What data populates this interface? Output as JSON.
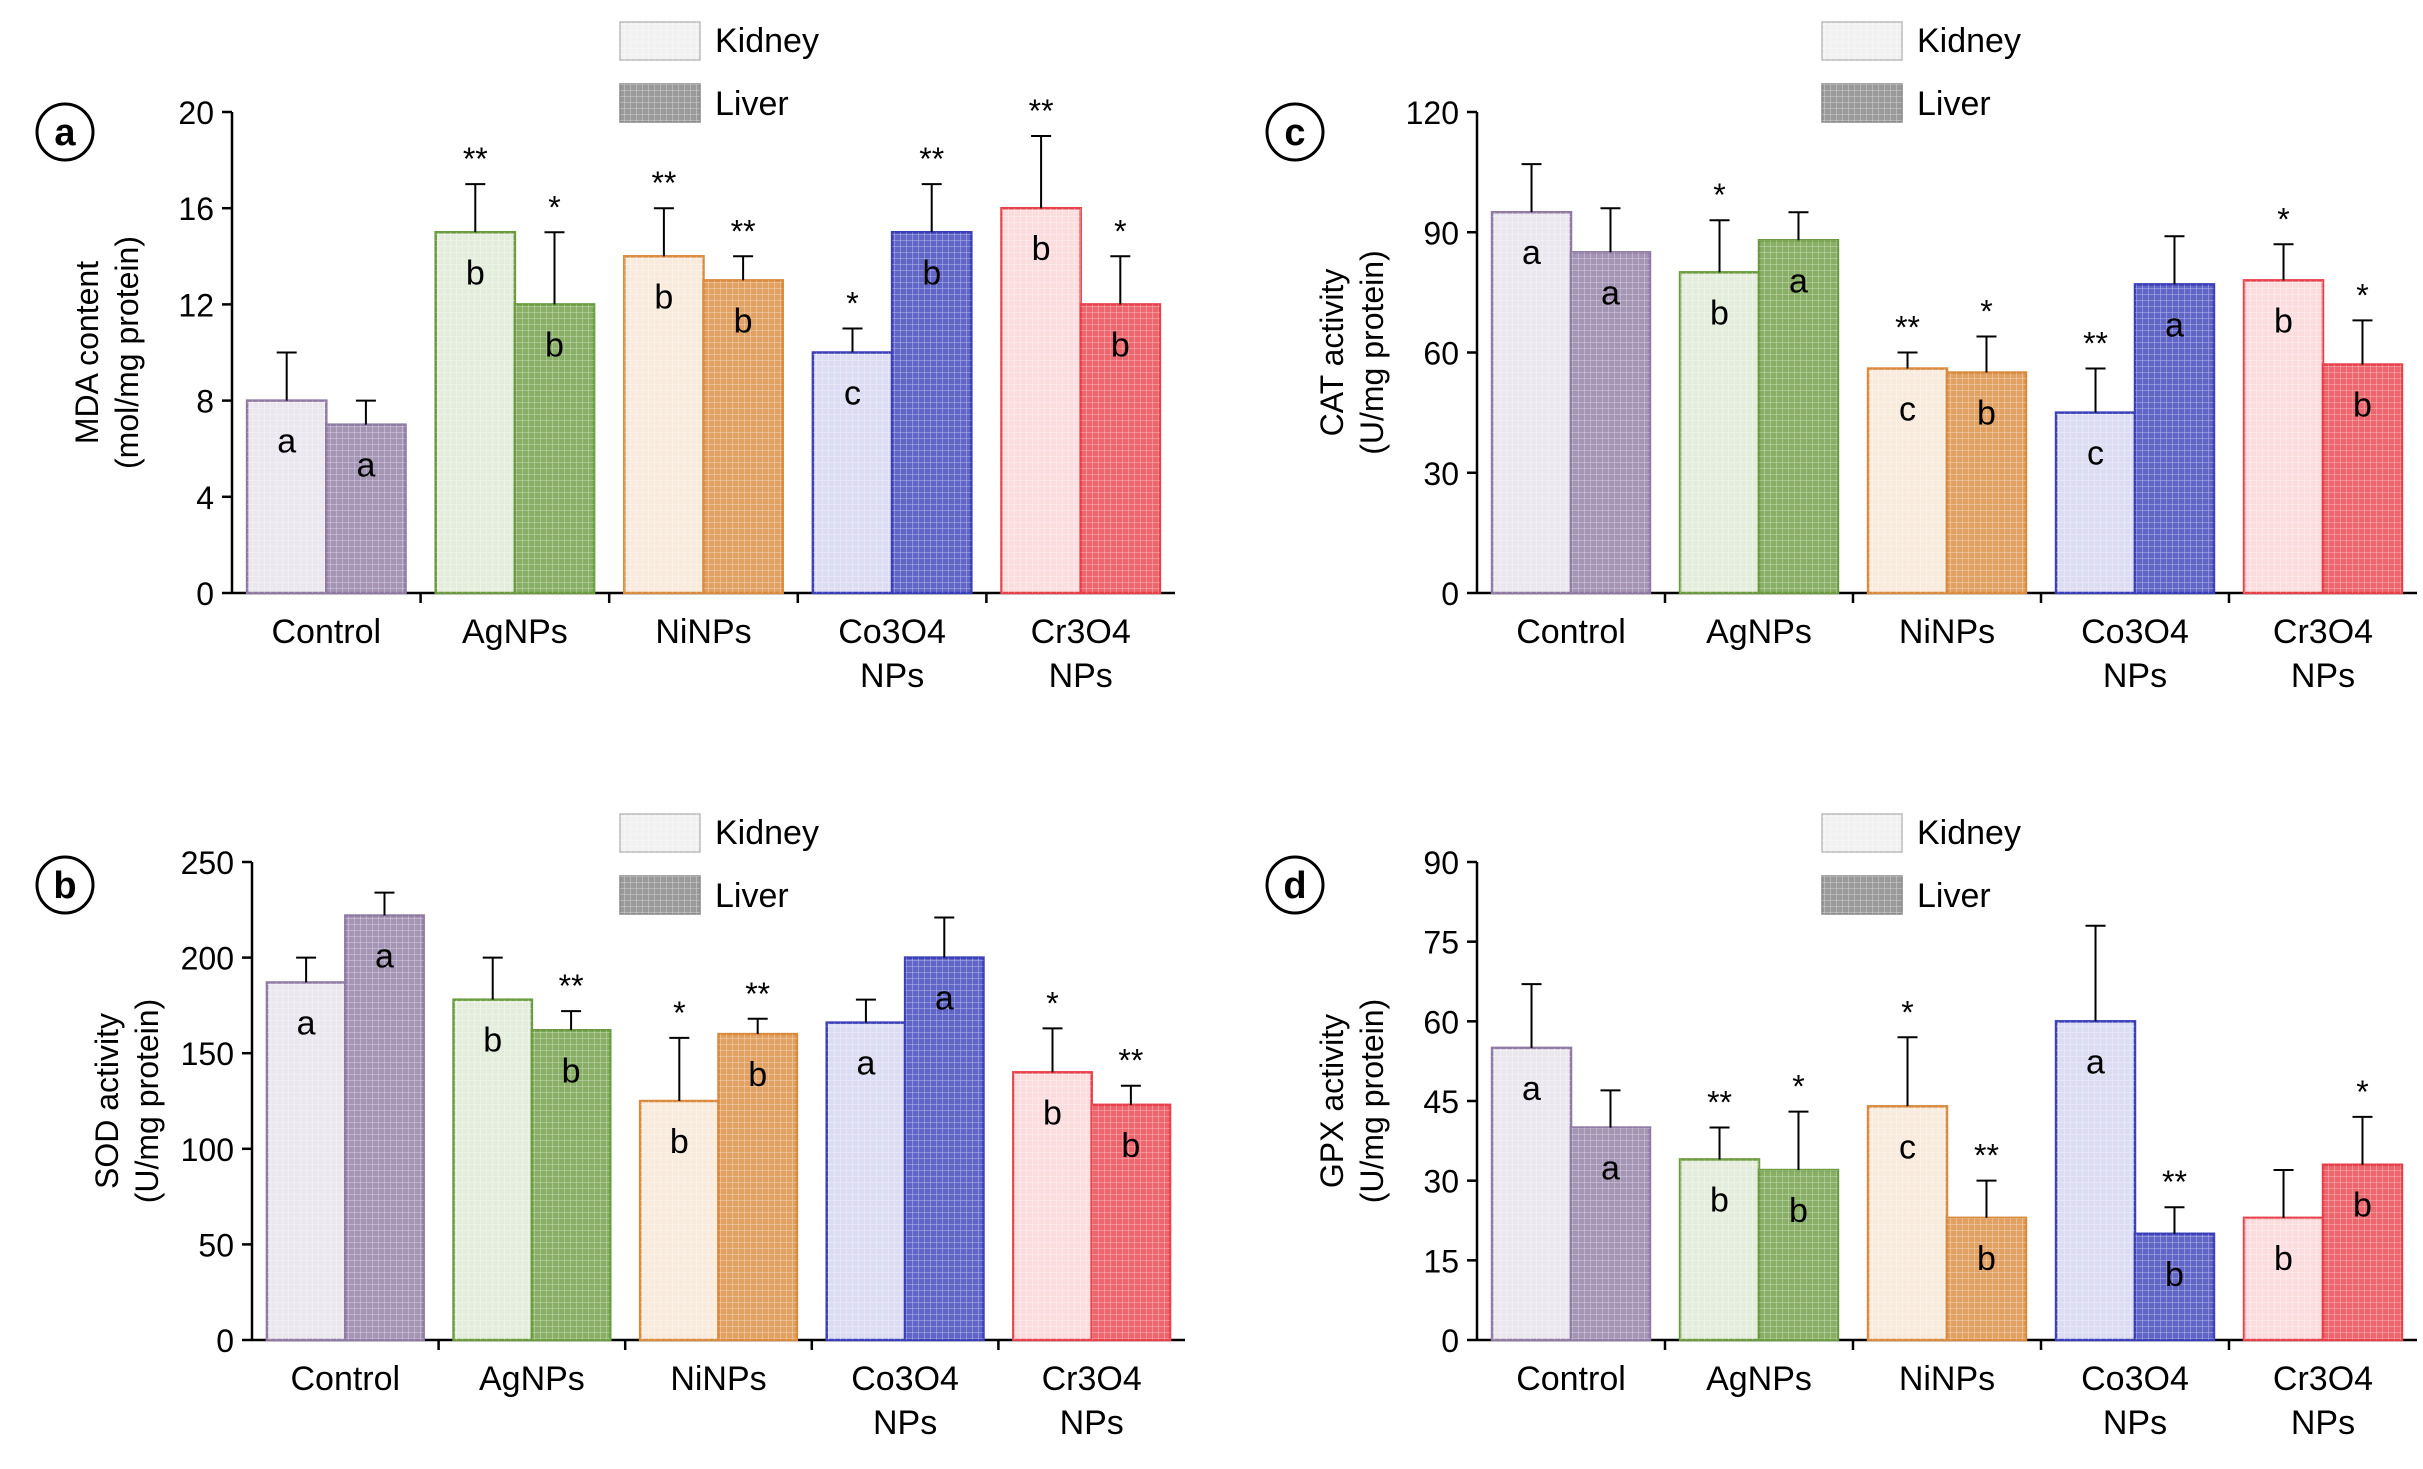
{
  "figure": {
    "legend": {
      "kidney": "Kidney",
      "liver": "Liver"
    },
    "colors": {
      "control": "#8e7aa3",
      "agnps": "#6a9b3f",
      "ninps": "#d98a3c",
      "co3o4": "#3a3fb8",
      "cr3o4": "#e8404a",
      "legend_swatch": "#9a9a9a"
    }
  },
  "chart_data": [
    {
      "panel": "a",
      "type": "bar",
      "ylabel": "MDA content",
      "ylabel_unit": "(mol/mg protein)",
      "ylim": [
        0,
        20
      ],
      "yticks": [
        "0",
        "4",
        "8",
        "12",
        "16",
        "20"
      ],
      "categories": [
        [
          "Control"
        ],
        [
          "AgNPs"
        ],
        [
          "NiNPs"
        ],
        [
          "Co3O4",
          "NPs"
        ],
        [
          "Cr3O4",
          "NPs"
        ]
      ],
      "series": [
        {
          "name": "Kidney",
          "values": [
            8,
            15,
            14,
            10,
            16
          ],
          "errors": [
            2,
            2,
            2,
            1,
            3
          ],
          "letters": [
            "a",
            "b",
            "b",
            "c",
            "b"
          ],
          "stars": [
            "",
            "**",
            "**",
            "*",
            "**"
          ]
        },
        {
          "name": "Liver",
          "values": [
            7,
            12,
            13,
            15,
            12
          ],
          "errors": [
            1,
            3,
            1,
            2,
            2
          ],
          "letters": [
            "a",
            "b",
            "b",
            "b",
            "b"
          ],
          "stars": [
            "",
            "*",
            "**",
            "**",
            "*"
          ]
        }
      ]
    },
    {
      "panel": "b",
      "type": "bar",
      "ylabel": "SOD activity",
      "ylabel_unit": "(U/mg protein)",
      "ylim": [
        0,
        250
      ],
      "yticks": [
        "0",
        "50",
        "100",
        "150",
        "200",
        "250"
      ],
      "categories": [
        [
          "Control"
        ],
        [
          "AgNPs"
        ],
        [
          "NiNPs"
        ],
        [
          "Co3O4",
          "NPs"
        ],
        [
          "Cr3O4",
          "NPs"
        ]
      ],
      "series": [
        {
          "name": "Kidney",
          "values": [
            187,
            178,
            125,
            166,
            140
          ],
          "errors": [
            13,
            22,
            33,
            12,
            23
          ],
          "letters": [
            "a",
            "b",
            "b",
            "a",
            "b"
          ],
          "stars": [
            "",
            "",
            "*",
            "",
            "*"
          ]
        },
        {
          "name": "Liver",
          "values": [
            222,
            162,
            160,
            200,
            123
          ],
          "errors": [
            12,
            10,
            8,
            21,
            10
          ],
          "letters": [
            "a",
            "b",
            "b",
            "a",
            "b"
          ],
          "stars": [
            "",
            "**",
            "**",
            "",
            "**"
          ]
        }
      ]
    },
    {
      "panel": "c",
      "type": "bar",
      "ylabel": "CAT activity",
      "ylabel_unit": "(U/mg protein)",
      "ylim": [
        0,
        120
      ],
      "yticks": [
        "0",
        "30",
        "60",
        "90",
        "120"
      ],
      "categories": [
        [
          "Control"
        ],
        [
          "AgNPs"
        ],
        [
          "NiNPs"
        ],
        [
          "Co3O4",
          "NPs"
        ],
        [
          "Cr3O4",
          "NPs"
        ]
      ],
      "series": [
        {
          "name": "Kidney",
          "values": [
            95,
            80,
            56,
            45,
            78
          ],
          "errors": [
            12,
            13,
            4,
            11,
            9
          ],
          "letters": [
            "a",
            "b",
            "c",
            "c",
            "b"
          ],
          "stars": [
            "",
            "*",
            "**",
            "**",
            "*"
          ]
        },
        {
          "name": "Liver",
          "values": [
            85,
            88,
            55,
            77,
            57
          ],
          "errors": [
            11,
            7,
            9,
            12,
            11
          ],
          "letters": [
            "a",
            "a",
            "b",
            "a",
            "b"
          ],
          "stars": [
            "",
            "",
            "*",
            "",
            "*"
          ]
        }
      ]
    },
    {
      "panel": "d",
      "type": "bar",
      "ylabel": "GPX activity",
      "ylabel_unit": "(U/mg protein)",
      "ylim": [
        0,
        90
      ],
      "yticks": [
        "0",
        "15",
        "30",
        "45",
        "60",
        "75",
        "90"
      ],
      "categories": [
        [
          "Control"
        ],
        [
          "AgNPs"
        ],
        [
          "NiNPs"
        ],
        [
          "Co3O4",
          "NPs"
        ],
        [
          "Cr3O4",
          "NPs"
        ]
      ],
      "series": [
        {
          "name": "Kidney",
          "values": [
            55,
            34,
            44,
            60,
            23
          ],
          "errors": [
            12,
            6,
            13,
            18,
            9
          ],
          "letters": [
            "a",
            "b",
            "c",
            "a",
            "b"
          ],
          "stars": [
            "",
            "**",
            "*",
            "",
            ""
          ]
        },
        {
          "name": "Liver",
          "values": [
            40,
            32,
            23,
            20,
            33
          ],
          "errors": [
            7,
            11,
            7,
            5,
            9
          ],
          "letters": [
            "a",
            "b",
            "b",
            "b",
            "b"
          ],
          "stars": [
            "",
            "*",
            "**",
            "**",
            "*"
          ]
        }
      ]
    }
  ]
}
